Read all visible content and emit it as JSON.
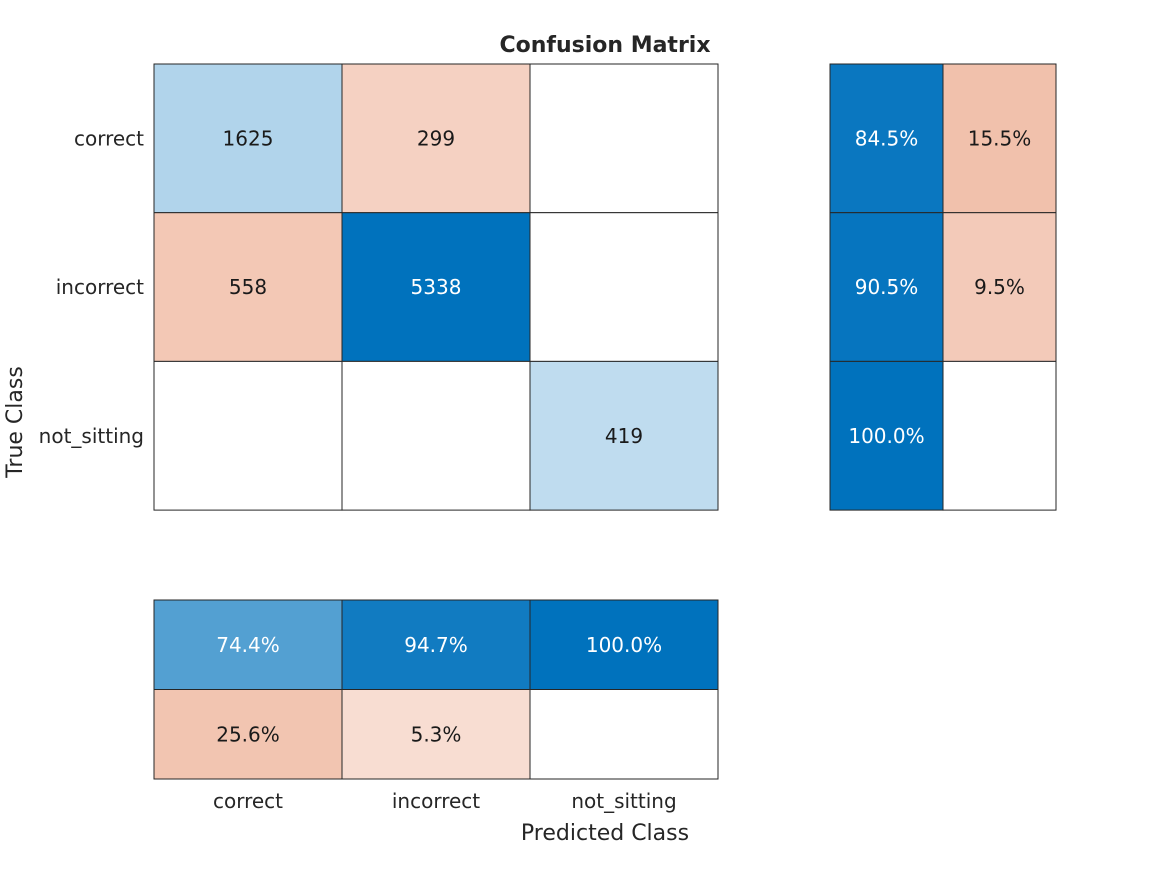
{
  "chart_data": {
    "type": "heatmap",
    "title": "Confusion Matrix",
    "xlabel": "Predicted Class",
    "ylabel": "True Class",
    "classes": [
      "correct",
      "incorrect",
      "not_sitting"
    ],
    "matrix": [
      [
        1625,
        299,
        0
      ],
      [
        558,
        5338,
        0
      ],
      [
        0,
        0,
        419
      ]
    ],
    "row_summary": [
      [
        "84.5%",
        "15.5%"
      ],
      [
        "90.5%",
        "9.5%"
      ],
      [
        "100.0%",
        ""
      ]
    ],
    "row_summary_values": [
      [
        84.5,
        15.5
      ],
      [
        90.5,
        9.5
      ],
      [
        100.0,
        0
      ]
    ],
    "column_summary": [
      [
        "74.4%",
        "94.7%",
        "100.0%"
      ],
      [
        "25.6%",
        "5.3%",
        ""
      ]
    ],
    "column_summary_values": [
      [
        74.4,
        94.7,
        100.0
      ],
      [
        25.6,
        5.3,
        0
      ]
    ],
    "colors": {
      "correct_max": "#0072bd",
      "incorrect_max": "#d95319",
      "border": "#262626",
      "text_dark": "#1a1a1a",
      "text_light": "#ffffff"
    }
  }
}
